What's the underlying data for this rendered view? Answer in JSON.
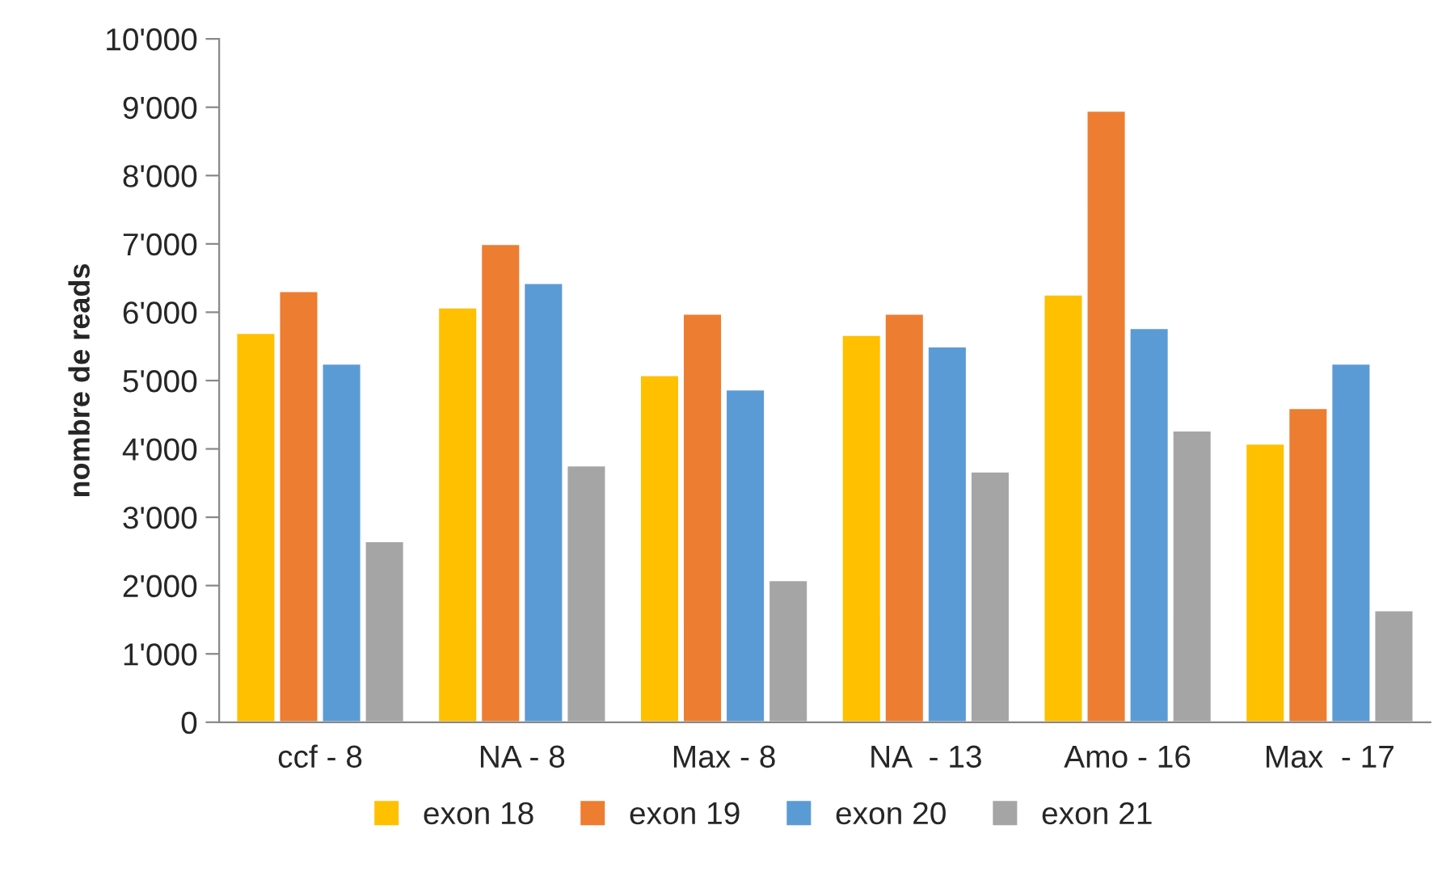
{
  "chart_data": {
    "type": "bar",
    "ylabel": "nombre de reads",
    "categories": [
      "ccf - 8",
      "NA - 8",
      "Max - 8",
      "NA  - 13",
      "Amo - 16",
      "Max  - 17"
    ],
    "series": [
      {
        "name": "exon 18",
        "color": "#ffc000",
        "values": [
          5700,
          6070,
          5080,
          5670,
          6260,
          4080
        ]
      },
      {
        "name": "exon 19",
        "color": "#ed7d31",
        "values": [
          6310,
          7000,
          5980,
          5980,
          8950,
          4600
        ]
      },
      {
        "name": "exon 20",
        "color": "#5b9bd5",
        "values": [
          5250,
          6430,
          4870,
          5500,
          5770,
          5250
        ]
      },
      {
        "name": "exon 21",
        "color": "#a5a5a5",
        "values": [
          2650,
          3760,
          2080,
          3670,
          4270,
          1640
        ]
      }
    ],
    "ylim": [
      0,
      10000
    ],
    "yticks": [
      0,
      {
        "value": 1000,
        "label": "1'000"
      },
      {
        "value": 2000,
        "label": "2'000"
      },
      {
        "value": 3000,
        "label": "3'000"
      },
      {
        "value": 4000,
        "label": "4'000"
      },
      {
        "value": 5000,
        "label": "5'000"
      },
      {
        "value": 6000,
        "label": "6'000"
      },
      {
        "value": 7000,
        "label": "7'000"
      },
      {
        "value": 8000,
        "label": "8'000"
      },
      {
        "value": 9000,
        "label": "9'000"
      },
      {
        "value": 10000,
        "label": "10'000"
      }
    ],
    "grid": false,
    "legend": "bottom"
  }
}
